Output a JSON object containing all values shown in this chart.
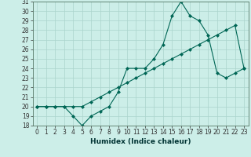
{
  "title": "",
  "xlabel": "Humidex (Indice chaleur)",
  "background_color": "#cceee8",
  "grid_color": "#aad4cc",
  "line_color": "#006655",
  "series1_x": [
    0,
    1,
    2,
    3,
    4,
    5,
    6,
    7,
    8,
    9,
    10,
    11,
    12,
    13,
    14,
    15,
    16,
    17,
    18,
    19,
    20,
    21,
    22,
    23
  ],
  "series1_y": [
    20,
    20,
    20,
    20,
    19,
    18,
    19,
    19.5,
    20,
    21.5,
    24,
    24,
    24,
    25,
    26.5,
    29.5,
    31,
    29.5,
    29,
    27.5,
    23.5,
    23,
    23.5,
    24
  ],
  "series2_x": [
    0,
    1,
    2,
    3,
    4,
    5,
    6,
    7,
    8,
    9,
    10,
    11,
    12,
    13,
    14,
    15,
    16,
    17,
    18,
    19,
    20,
    21,
    22,
    23
  ],
  "series2_y": [
    20,
    20,
    20,
    20,
    20,
    20,
    20.5,
    21,
    21.5,
    22,
    22.5,
    23,
    23.5,
    24,
    24.5,
    25,
    25.5,
    26,
    26.5,
    27,
    27.5,
    28,
    28.5,
    24
  ],
  "ylim": [
    18,
    31
  ],
  "xlim": [
    -0.5,
    23.5
  ],
  "yticks": [
    18,
    19,
    20,
    21,
    22,
    23,
    24,
    25,
    26,
    27,
    28,
    29,
    30,
    31
  ],
  "xticks": [
    0,
    1,
    2,
    3,
    4,
    5,
    6,
    7,
    8,
    9,
    10,
    11,
    12,
    13,
    14,
    15,
    16,
    17,
    18,
    19,
    20,
    21,
    22,
    23
  ],
  "tick_fontsize": 5.5,
  "xlabel_fontsize": 6.5
}
